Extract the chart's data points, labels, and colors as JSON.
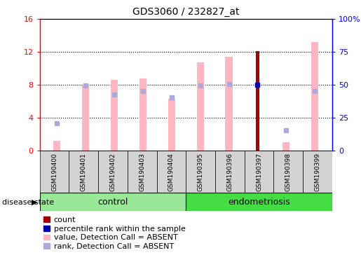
{
  "title": "GDS3060 / 232827_at",
  "samples": [
    "GSM190400",
    "GSM190401",
    "GSM190402",
    "GSM190403",
    "GSM190404",
    "GSM190395",
    "GSM190396",
    "GSM190397",
    "GSM190398",
    "GSM190399"
  ],
  "ylim_left": [
    0,
    16
  ],
  "ylim_right": [
    0,
    100
  ],
  "yticks_left": [
    0,
    4,
    8,
    12,
    16
  ],
  "yticks_right": [
    0,
    25,
    50,
    75,
    100
  ],
  "yticklabels_left": [
    "0",
    "4",
    "8",
    "12",
    "16"
  ],
  "yticklabels_right": [
    "0",
    "25",
    "50",
    "75",
    "100%"
  ],
  "pink_bars": [
    1.2,
    7.9,
    8.6,
    8.8,
    6.3,
    10.7,
    11.4,
    12.1,
    1.0,
    13.2
  ],
  "blue_squares": [
    3.3,
    7.9,
    6.8,
    7.2,
    6.5,
    7.9,
    8.1,
    8.0,
    2.5,
    7.2
  ],
  "red_bar_index": 7,
  "red_bar_value": 12.1,
  "pink_color": "#FFB6C1",
  "lightblue_color": "#AAAADD",
  "red_color": "#AA0000",
  "blue_color": "#0000AA",
  "group_bar_bg": "#D3D3D3",
  "group_label_control": "control",
  "group_label_endo": "endometriosis",
  "disease_state_label": "disease state",
  "legend_items": [
    "count",
    "percentile rank within the sample",
    "value, Detection Call = ABSENT",
    "rank, Detection Call = ABSENT"
  ],
  "pink_bar_width": 0.25,
  "red_bar_width": 0.12,
  "control_green": "#98E898",
  "endo_green": "#44DD44"
}
